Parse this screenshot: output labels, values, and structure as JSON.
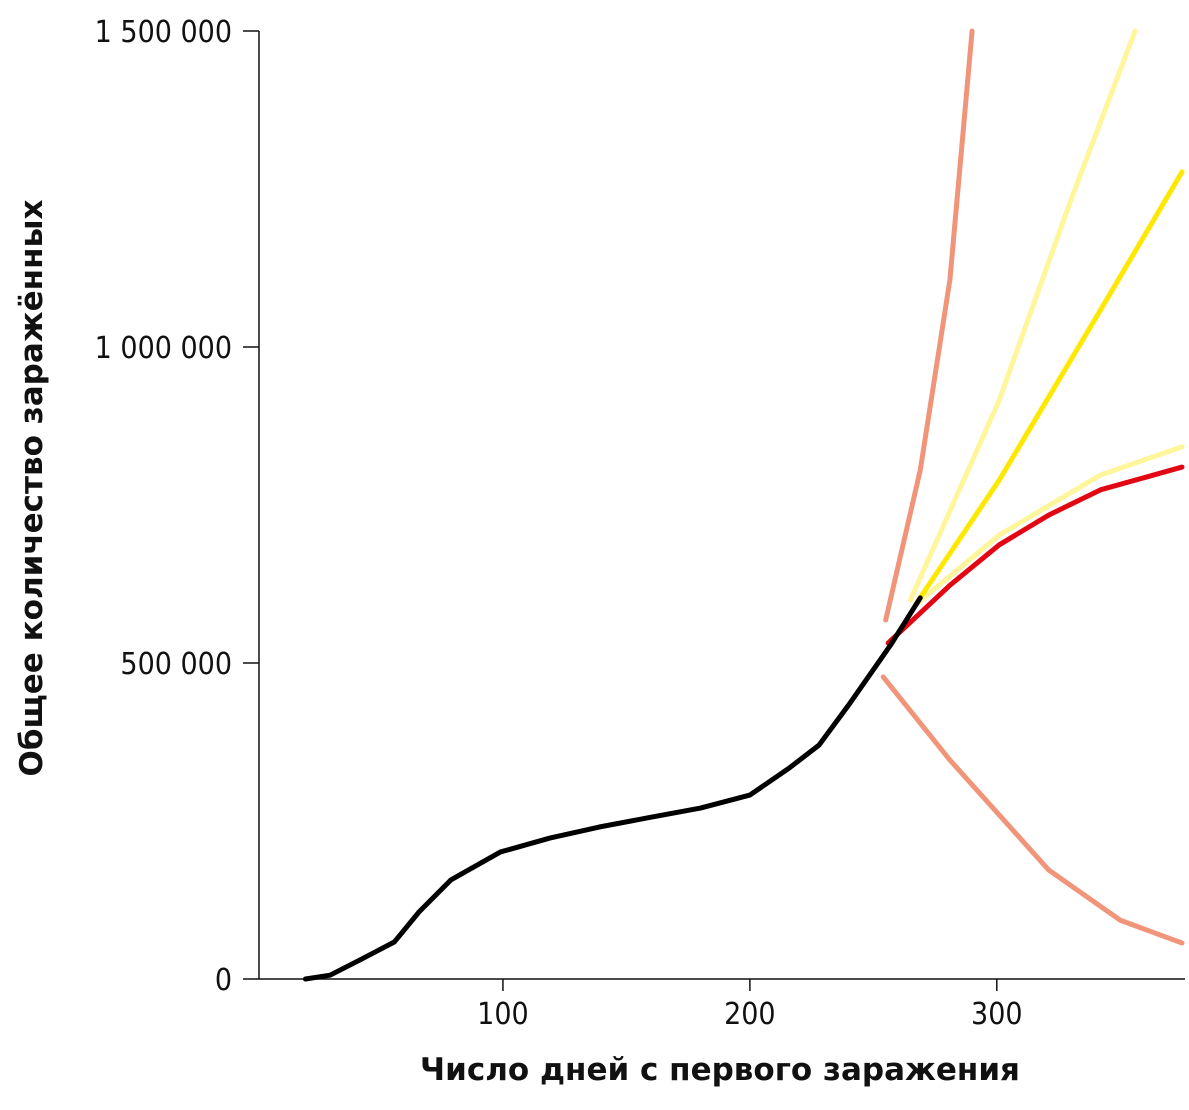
{
  "chart_data": {
    "type": "line",
    "x_label": "Число дней с первого заражения",
    "y_label": "Общее количество заражённых",
    "xlim": [
      0,
      375
    ],
    "ylim": [
      0,
      1500000
    ],
    "xticks": [
      100,
      200,
      300
    ],
    "yticks": [
      0,
      {
        "value": 500000,
        "label": "500 000"
      },
      {
        "value": 1000000,
        "label": "1 000 000"
      },
      {
        "value": 1500000,
        "label": "1 500 000"
      }
    ],
    "series": [
      {
        "color": "#f0957a",
        "x": [
          255,
          269,
          281,
          290
        ],
        "values": [
          568000,
          805000,
          1106000,
          1500000
        ]
      },
      {
        "color": "#f0957a",
        "x": [
          254,
          281,
          321,
          350,
          375
        ],
        "values": [
          478000,
          346500,
          172500,
          93000,
          57000
        ]
      },
      {
        "color": "#fff59a",
        "x": [
          265,
          301,
          330,
          356
        ],
        "values": [
          600000,
          916000,
          1232600,
          1500000
        ]
      },
      {
        "color": "#fff59a",
        "x": [
          267,
          301,
          342,
          375
        ],
        "values": [
          592000,
          702500,
          797500,
          842000
        ]
      },
      {
        "color": "#ffe800",
        "x": [
          267,
          301,
          342,
          375
        ],
        "values": [
          592000,
          789500,
          1058500,
          1277000
        ]
      },
      {
        "color": "#e30613",
        "x": [
          256,
          281,
          301,
          321,
          342,
          375
        ],
        "values": [
          531600,
          623000,
          687000,
          734000,
          774000,
          810000
        ]
      },
      {
        "color": "#000000",
        "x": [
          20,
          30,
          42,
          56,
          66,
          79,
          99,
          119,
          139,
          160,
          180,
          200,
          216,
          228,
          240,
          257,
          269
        ],
        "values": [
          0,
          6000,
          30000,
          58500,
          106000,
          157000,
          201000,
          223000,
          240500,
          256000,
          270500,
          291000,
          334000,
          370000,
          433500,
          528500,
          603000
        ]
      }
    ]
  }
}
